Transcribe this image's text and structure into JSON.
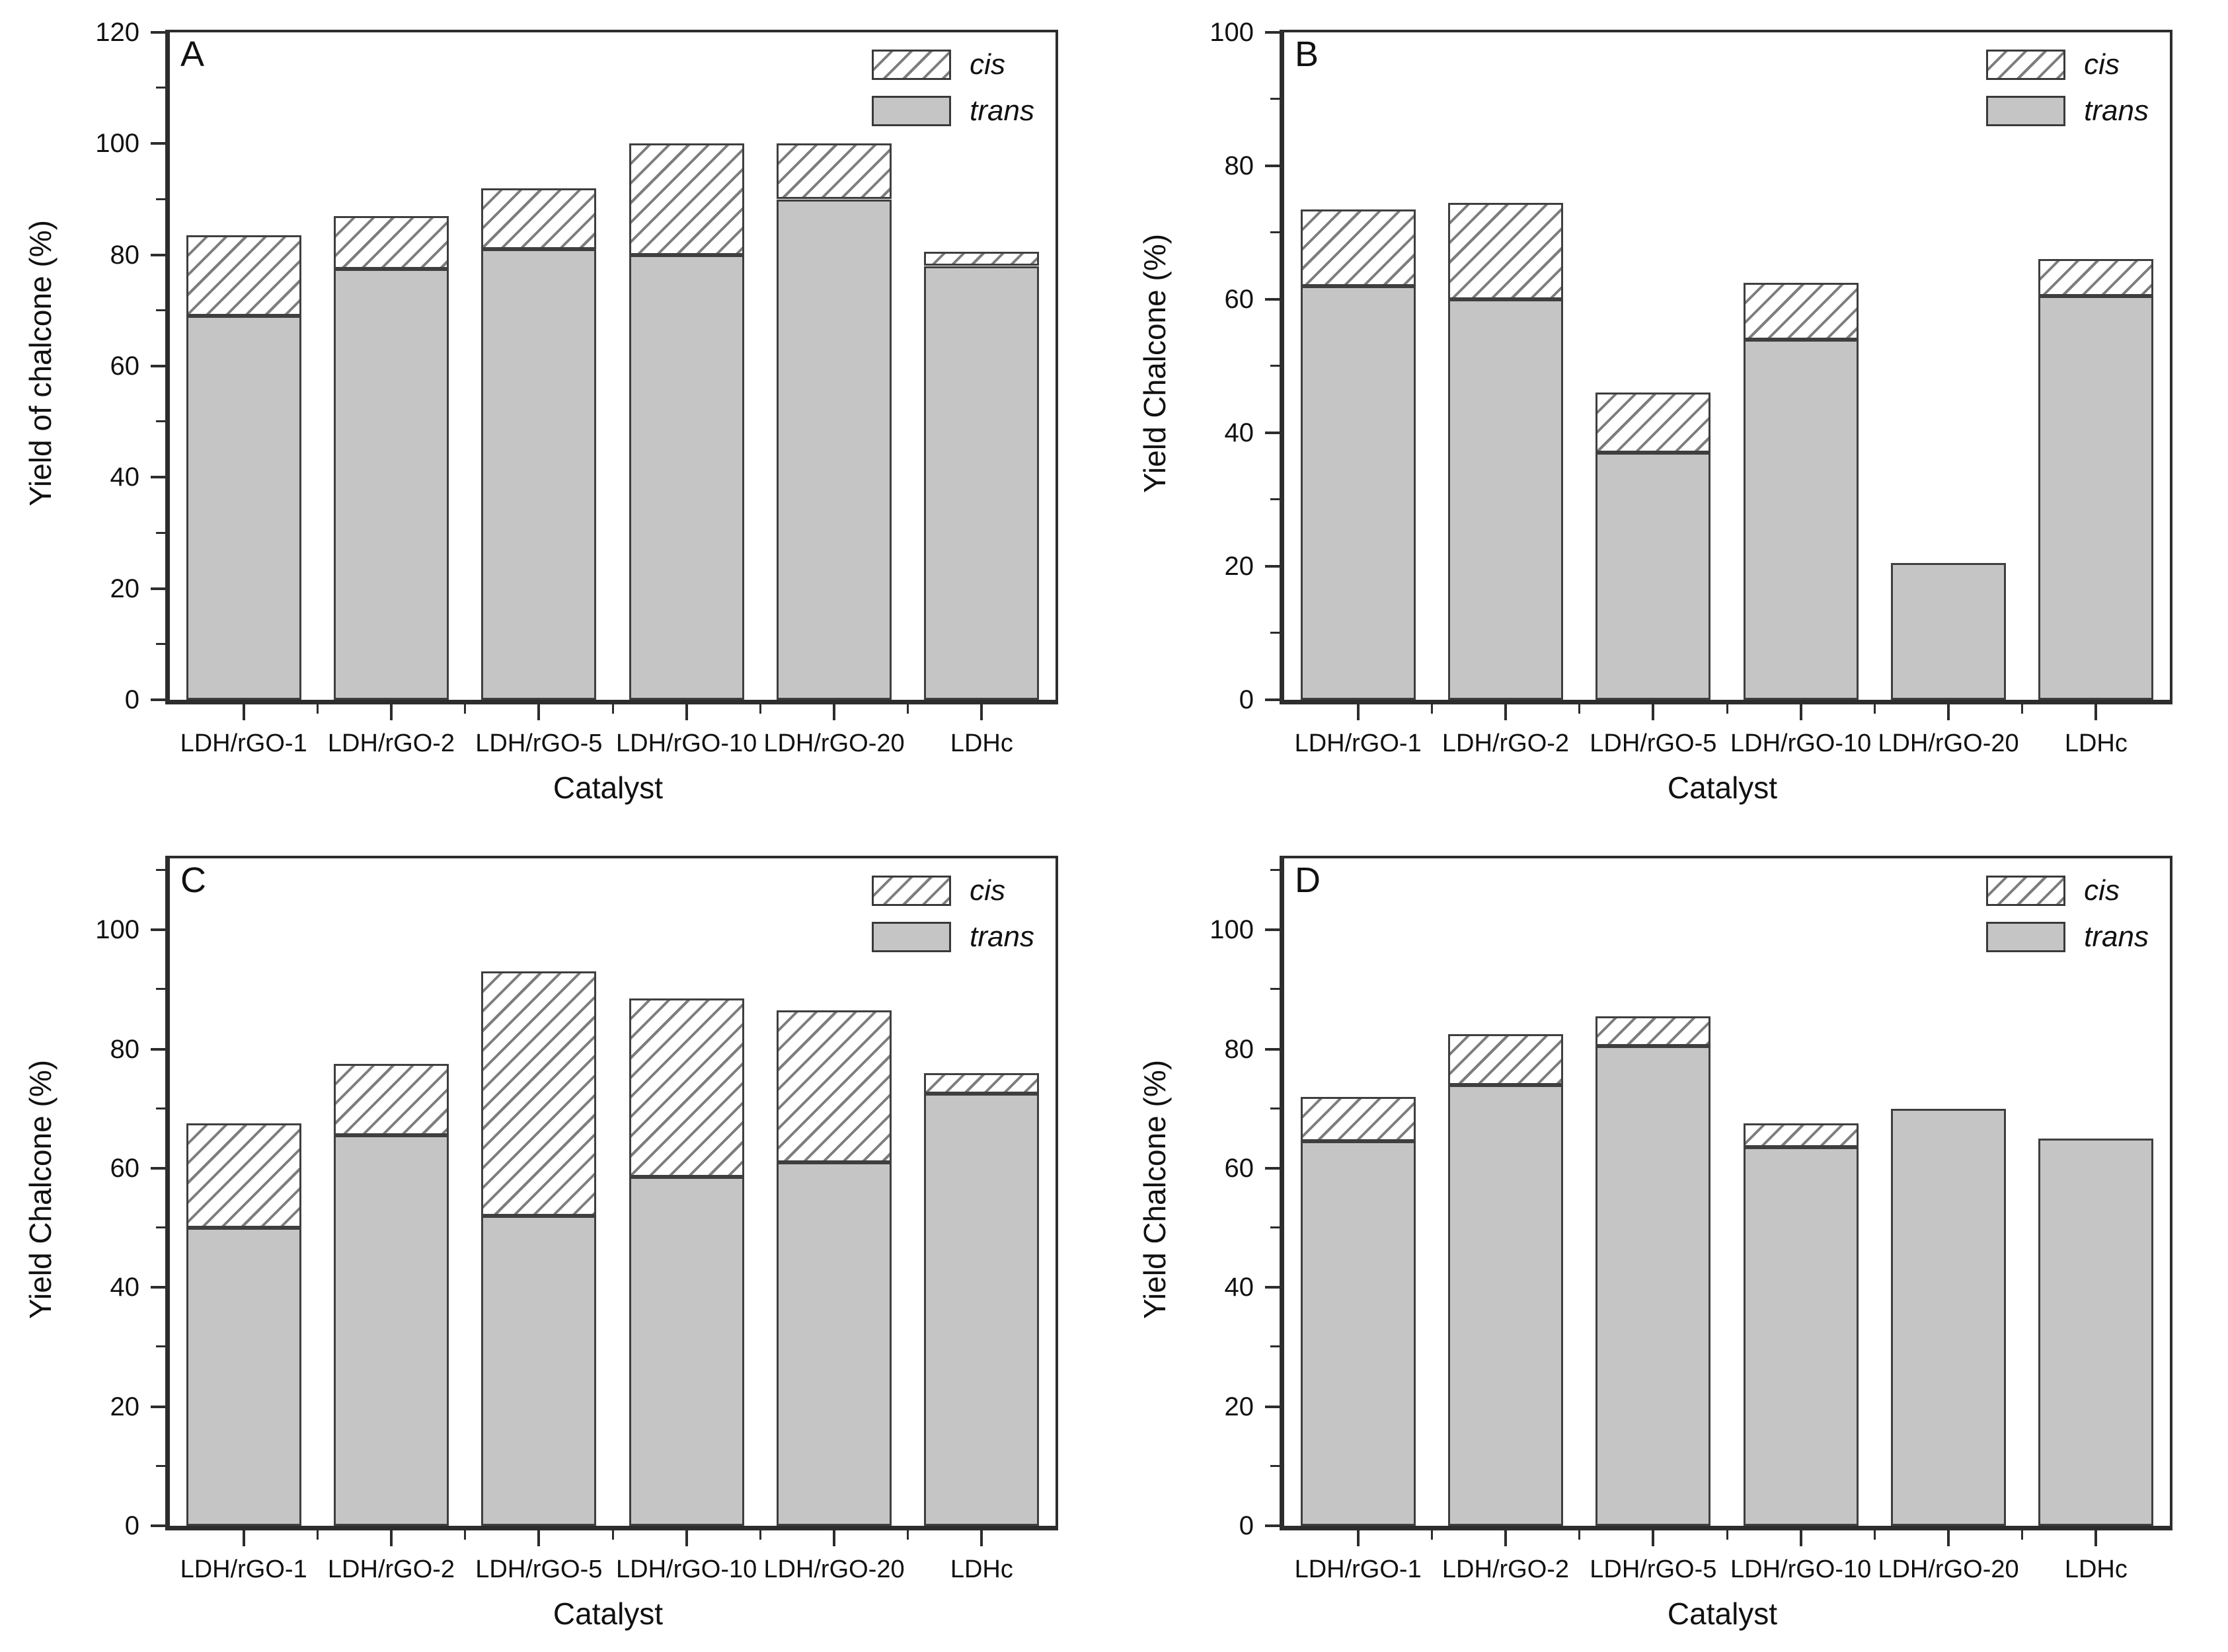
{
  "figure": {
    "description": "Four stacked bar chart panels (A-D) of chalcone yield over catalysts, cis/trans isomer fractions",
    "background": "#ffffff"
  },
  "colors": {
    "trans_fill": "#c5c5c5",
    "cis_hatch_line": "#7d7d7d",
    "bar_border": "#3f3f3f",
    "axis": "#2d2d2d",
    "text": "#111111"
  },
  "chart_data": [
    {
      "type": "bar",
      "stacked": true,
      "panel": "A",
      "ylabel": "Yield of chalcone (%)",
      "xlabel": "Catalyst",
      "ylim": [
        0,
        120
      ],
      "ytick_step": 20,
      "minor_step": 10,
      "grid": false,
      "legend_position": "top-right",
      "legend": [
        "cis",
        "trans"
      ],
      "categories": [
        "LDH/rGO-1",
        "LDH/rGO-2",
        "LDH/rGO-5",
        "LDH/rGO-10",
        "LDH/rGO-20",
        "LDHc"
      ],
      "series": [
        {
          "name": "trans",
          "values": [
            69,
            77.5,
            81,
            80,
            90,
            78
          ]
        },
        {
          "name": "cis",
          "values": [
            14.5,
            9.5,
            11,
            20,
            10,
            2.5
          ]
        }
      ],
      "totals": [
        83.5,
        87,
        92,
        100,
        100,
        80.5
      ]
    },
    {
      "type": "bar",
      "stacked": true,
      "panel": "B",
      "ylabel": "Yield Chalcone (%)",
      "xlabel": "Catalyst",
      "ylim": [
        0,
        100
      ],
      "ytick_step": 20,
      "minor_step": 10,
      "grid": false,
      "legend_position": "top-right",
      "legend": [
        "cis",
        "trans"
      ],
      "categories": [
        "LDH/rGO-1",
        "LDH/rGO-2",
        "LDH/rGO-5",
        "LDH/rGO-10",
        "LDH/rGO-20",
        "LDHc"
      ],
      "series": [
        {
          "name": "trans",
          "values": [
            62,
            60,
            37,
            54,
            20.5,
            60.5
          ]
        },
        {
          "name": "cis",
          "values": [
            11.5,
            14.5,
            9,
            8.5,
            0,
            5.5
          ]
        }
      ],
      "totals": [
        73.5,
        74.5,
        46,
        62.5,
        20.5,
        66
      ]
    },
    {
      "type": "bar",
      "stacked": true,
      "panel": "C",
      "ylabel": "Yield Chalcone (%)",
      "xlabel": "Catalyst",
      "ylim": [
        0,
        112
      ],
      "ytick_step": 20,
      "minor_step": 10,
      "grid": false,
      "legend_position": "top-right",
      "legend": [
        "cis",
        "trans"
      ],
      "categories": [
        "LDH/rGO-1",
        "LDH/rGO-2",
        "LDH/rGO-5",
        "LDH/rGO-10",
        "LDH/rGO-20",
        "LDHc"
      ],
      "series": [
        {
          "name": "trans",
          "values": [
            50,
            65.5,
            52,
            58.5,
            61,
            72.5
          ]
        },
        {
          "name": "cis",
          "values": [
            17.5,
            12,
            41,
            30,
            25.5,
            3.5
          ]
        }
      ],
      "totals": [
        67.5,
        77.5,
        93,
        88.5,
        86.5,
        76
      ]
    },
    {
      "type": "bar",
      "stacked": true,
      "panel": "D",
      "ylabel": "Yield Chalcone (%)",
      "xlabel": "Catalyst",
      "ylim": [
        0,
        112
      ],
      "ytick_step": 20,
      "minor_step": 10,
      "grid": false,
      "legend_position": "top-right",
      "legend": [
        "cis",
        "trans"
      ],
      "categories": [
        "LDH/rGO-1",
        "LDH/rGO-2",
        "LDH/rGO-5",
        "LDH/rGO-10",
        "LDH/rGO-20",
        "LDHc"
      ],
      "series": [
        {
          "name": "trans",
          "values": [
            64.5,
            74,
            80.5,
            63.5,
            70,
            65
          ]
        },
        {
          "name": "cis",
          "values": [
            7.5,
            8.5,
            5,
            4,
            0,
            0
          ]
        }
      ],
      "totals": [
        72,
        82.5,
        85.5,
        67.5,
        70,
        65
      ]
    }
  ]
}
